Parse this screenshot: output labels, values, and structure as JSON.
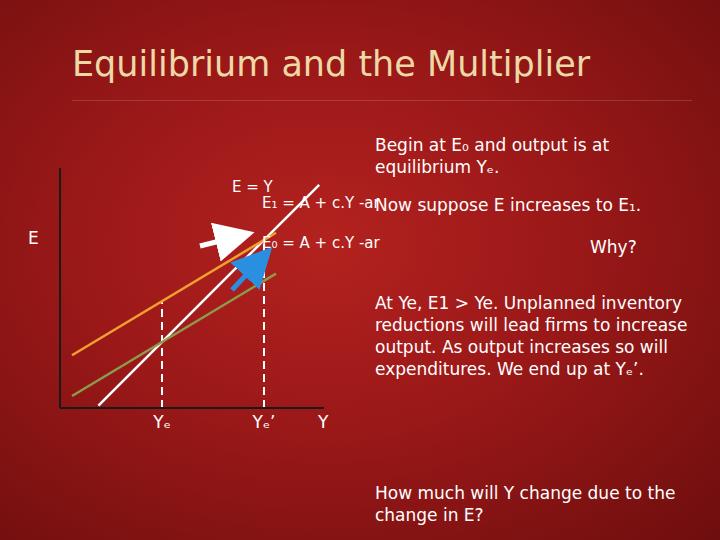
{
  "chart_data": {
    "type": "line",
    "title": "Equilibrium and the Multiplier",
    "x_label": "Y",
    "y_label": "E",
    "xlim": [
      0,
      110
    ],
    "ylim": [
      0,
      100
    ],
    "xticks": [
      {
        "value": 42.5,
        "label": "Yₑ"
      },
      {
        "value": 85,
        "label": "Yₑ’"
      }
    ],
    "yticks": [],
    "tick_labels": "x",
    "grid": false,
    "series": [
      {
        "name": "E = Y",
        "color": "#ffffff",
        "x": [
          16,
          108
        ],
        "values": [
          1,
          93
        ]
      },
      {
        "name": "E₁ = A + c.Y -ar",
        "color": "#f0a030",
        "x": [
          5,
          90
        ],
        "values": [
          22,
          73
        ]
      },
      {
        "name": "E₀ = A + c.Y -ar",
        "color": "#8e9a4c",
        "x": [
          5,
          90
        ],
        "values": [
          5,
          56
        ]
      }
    ],
    "guides": [
      {
        "x": 42.5,
        "top": 44.5
      },
      {
        "x": 85,
        "top": 70
      }
    ],
    "annotations": [
      "Begin at E₀ and output is at equilibrium Yₑ.",
      "Now suppose E increases to E₁.",
      "Why?",
      "At Ye, E1 > Ye. Unplanned inventory reductions will lead firms to increase output. As output increases so will expenditures. We end up at Yₑ’.",
      "How much will Y change due to the change in E?"
    ]
  }
}
